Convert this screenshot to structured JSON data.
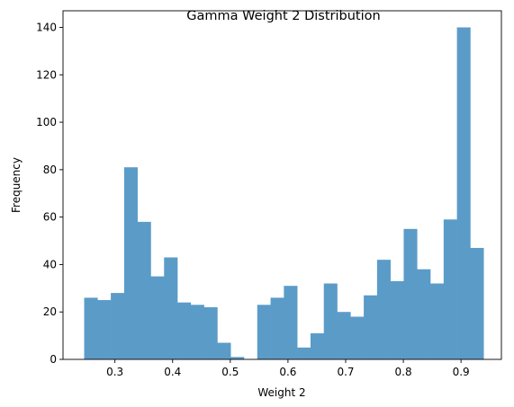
{
  "chart_data": {
    "type": "bar",
    "subtype": "histogram",
    "title": "Gamma Weight 2 Distribution",
    "xlabel": "Weight 2",
    "ylabel": "Frequency",
    "xlim": [
      0.21,
      0.97
    ],
    "ylim": [
      0,
      147
    ],
    "bin_start": 0.2467,
    "bin_width": 0.02308,
    "values": [
      26,
      25,
      28,
      81,
      58,
      35,
      43,
      24,
      23,
      22,
      7,
      1,
      0,
      23,
      26,
      31,
      5,
      11,
      32,
      20,
      18,
      27,
      42,
      33,
      55,
      38,
      32,
      59,
      140,
      47
    ],
    "xticks": [
      0.3,
      0.4,
      0.5,
      0.6,
      0.7,
      0.8,
      0.9
    ],
    "xtick_labels": [
      "0.3",
      "0.4",
      "0.5",
      "0.6",
      "0.7",
      "0.8",
      "0.9"
    ],
    "yticks": [
      0,
      20,
      40,
      60,
      80,
      100,
      120,
      140
    ],
    "ytick_labels": [
      "0",
      "20",
      "40",
      "60",
      "80",
      "100",
      "120",
      "140"
    ],
    "bar_color": "#5b9bc8",
    "grid": false,
    "legend": "none"
  }
}
